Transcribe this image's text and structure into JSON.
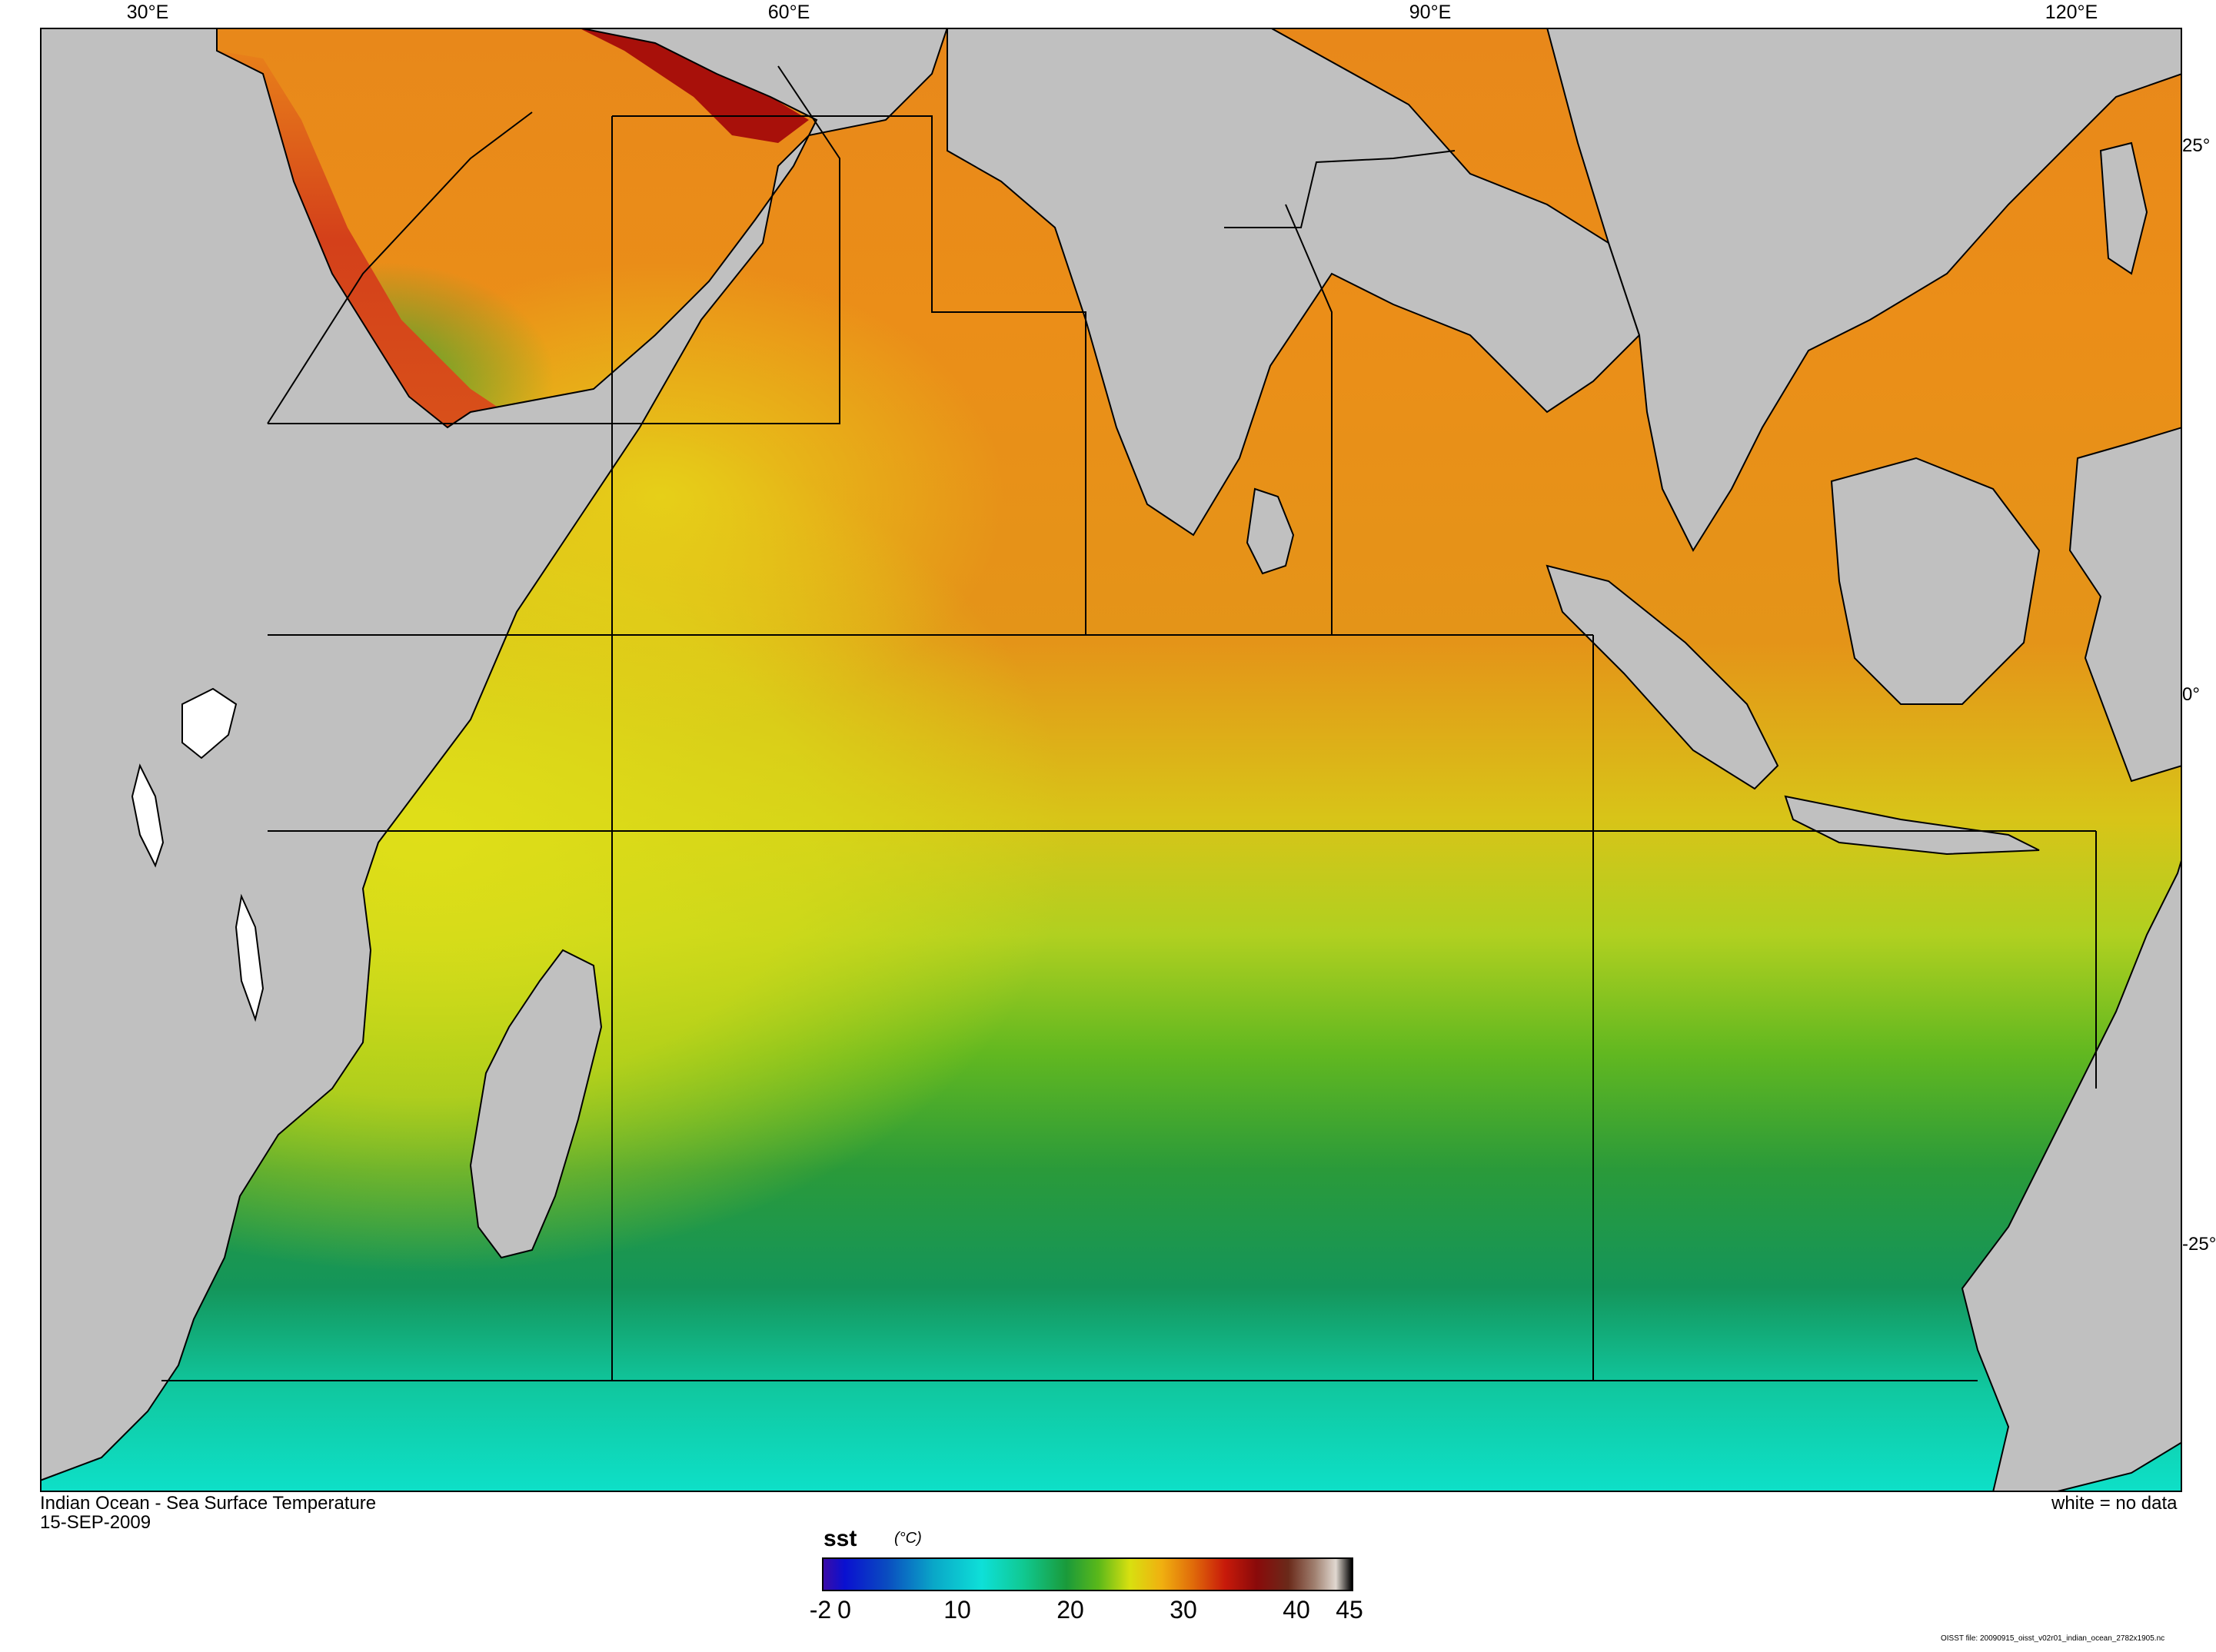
{
  "map": {
    "title": "Indian Ocean - Sea Surface Temperature",
    "date": "15-SEP-2009",
    "no_data_note": "white = no data",
    "source_note": "OISST file: 20090915_oisst_v02r01_indian_ocean_2782x1905.nc",
    "longitude_labels": [
      "30°E",
      "60°E",
      "90°E",
      "120°E"
    ],
    "latitude_labels": [
      "25°",
      "0°",
      "-25°"
    ],
    "land_color": "#c0c0c0",
    "no_data_color": "#ffffff"
  },
  "colorbar": {
    "variable": "sst",
    "units": "(°C)",
    "tick_labels": [
      "-2",
      "0",
      "10",
      "20",
      "30",
      "40",
      "45"
    ],
    "range": [
      -2,
      45
    ],
    "colors": [
      "#3a0ca8",
      "#0a10d0",
      "#0a4cc0",
      "#0aa8c8",
      "#0ee0d8",
      "#10c890",
      "#1a9a3a",
      "#5ab81a",
      "#d8e010",
      "#f0b010",
      "#e06a0a",
      "#c81a0a",
      "#8a0a0a",
      "#6a2a1a",
      "#a08070",
      "#e0d8d0",
      "#000000"
    ]
  }
}
